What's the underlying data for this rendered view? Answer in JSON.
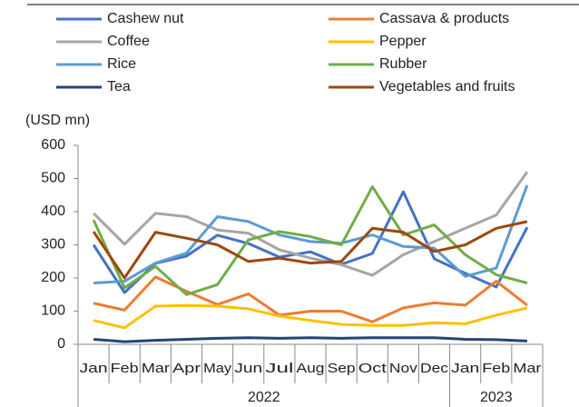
{
  "chart_data": {
    "type": "line",
    "y_label": "(USD mn)",
    "categories": [
      "Jan",
      "Feb",
      "Mar",
      "Apr",
      "May",
      "Jun",
      "Jul",
      "Aug",
      "Sep",
      "Oct",
      "Nov",
      "Dec",
      "Jan",
      "Feb",
      "Mar"
    ],
    "x_groups": [
      {
        "label": "2022",
        "count": 12
      },
      {
        "label": "2023",
        "count": 3
      }
    ],
    "ylim": [
      0,
      600
    ],
    "yticks": [
      0,
      100,
      200,
      300,
      400,
      500,
      600
    ],
    "series": [
      {
        "name": "Cashew nut",
        "color": "#4472c4",
        "values": [
          300,
          156,
          244,
          266,
          329,
          304,
          263,
          279,
          241,
          274,
          460,
          258,
          214,
          173,
          353
        ]
      },
      {
        "name": "Cassava & products",
        "color": "#ed7d31",
        "values": [
          124,
          103,
          203,
          160,
          120,
          152,
          88,
          100,
          100,
          68,
          110,
          125,
          118,
          190,
          118
        ]
      },
      {
        "name": "Coffee",
        "color": "#a5a5a5",
        "values": [
          395,
          302,
          395,
          385,
          345,
          335,
          285,
          260,
          240,
          208,
          270,
          310,
          350,
          390,
          520
        ]
      },
      {
        "name": "Pepper",
        "color": "#ffc000",
        "values": [
          72,
          50,
          115,
          117,
          115,
          107,
          85,
          72,
          60,
          57,
          57,
          65,
          62,
          88,
          110
        ]
      },
      {
        "name": "Rice",
        "color": "#5b9bd5",
        "values": [
          185,
          190,
          245,
          275,
          385,
          370,
          330,
          310,
          305,
          330,
          295,
          290,
          205,
          230,
          480
        ]
      },
      {
        "name": "Rubber",
        "color": "#70ad47",
        "values": [
          375,
          170,
          235,
          150,
          180,
          315,
          340,
          325,
          300,
          475,
          330,
          360,
          270,
          210,
          185
        ]
      },
      {
        "name": "Tea",
        "color": "#264478",
        "values": [
          15,
          8,
          12,
          15,
          18,
          20,
          18,
          20,
          18,
          20,
          20,
          20,
          15,
          14,
          10
        ]
      },
      {
        "name": "Vegetables and fruits",
        "color": "#9e480e",
        "values": [
          340,
          200,
          338,
          320,
          300,
          250,
          260,
          245,
          250,
          350,
          338,
          280,
          300,
          350,
          370
        ]
      }
    ]
  }
}
